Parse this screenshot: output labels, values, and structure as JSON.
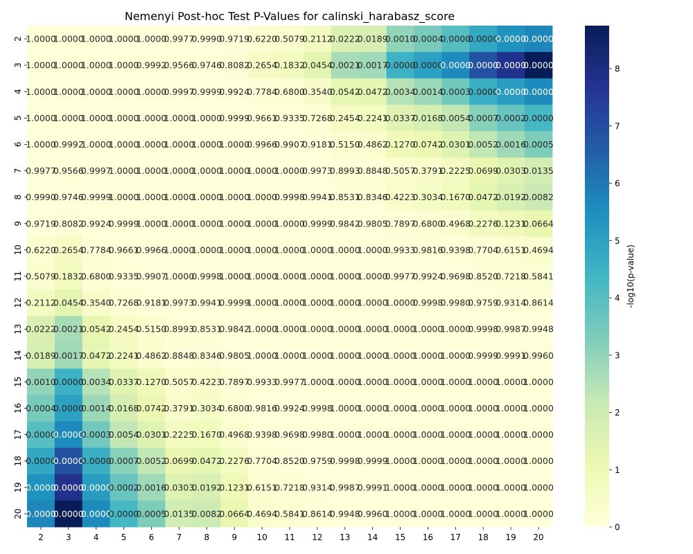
{
  "chart_data": {
    "type": "heatmap",
    "title": "Nemenyi Post-hoc Test P-Values for calinski_harabasz_score",
    "xlabel": "",
    "ylabel": "",
    "categories": [
      "2",
      "3",
      "4",
      "5",
      "6",
      "7",
      "8",
      "9",
      "10",
      "11",
      "12",
      "13",
      "14",
      "15",
      "16",
      "17",
      "18",
      "19",
      "20"
    ],
    "colorbar": {
      "label": "-log10(p-value)",
      "min": 0,
      "max": 8.75,
      "ticks": [
        "0",
        "1",
        "2",
        "3",
        "4",
        "5",
        "6",
        "7",
        "8"
      ],
      "colormap": "YlGnBu"
    },
    "colorscale": [
      "#ffffd9",
      "#edf8b1",
      "#c7e9b4",
      "#7fcdbb",
      "#41b6c4",
      "#1d91c0",
      "#225ea8",
      "#253494",
      "#081d58"
    ],
    "display_values": [
      [
        "1.0000",
        "1.0000",
        "1.0000",
        "1.0000",
        "1.0000",
        "0.9977",
        "0.9990",
        "0.9719",
        "0.6220",
        "0.5079",
        "0.2112",
        "0.0222",
        "0.0189",
        "0.0010",
        "0.0004",
        "0.0000",
        "0.0000",
        "0.0000",
        "0.0000"
      ],
      [
        "1.0000",
        "1.0000",
        "1.0000",
        "1.0000",
        "0.9992",
        "0.9566",
        "0.9746",
        "0.8082",
        "0.2654",
        "0.1832",
        "0.0454",
        "0.0021",
        "0.0017",
        "0.0000",
        "0.0000",
        "0.0000",
        "0.0000",
        "0.0000",
        "0.0000"
      ],
      [
        "1.0000",
        "1.0000",
        "1.0000",
        "1.0000",
        "1.0000",
        "0.9997",
        "0.9999",
        "0.9924",
        "0.7784",
        "0.6800",
        "0.3540",
        "0.0542",
        "0.0472",
        "0.0034",
        "0.0014",
        "0.0003",
        "0.0000",
        "0.0000",
        "0.0000"
      ],
      [
        "1.0000",
        "1.0000",
        "1.0000",
        "1.0000",
        "1.0000",
        "1.0000",
        "1.0000",
        "0.9999",
        "0.9661",
        "0.9335",
        "0.7268",
        "0.2454",
        "0.2241",
        "0.0337",
        "0.0168",
        "0.0054",
        "0.0007",
        "0.0002",
        "0.0000"
      ],
      [
        "1.0000",
        "0.9992",
        "1.0000",
        "1.0000",
        "1.0000",
        "1.0000",
        "1.0000",
        "1.0000",
        "0.9966",
        "0.9907",
        "0.9181",
        "0.5150",
        "0.4862",
        "0.1270",
        "0.0742",
        "0.0301",
        "0.0052",
        "0.0016",
        "0.0005"
      ],
      [
        "0.9977",
        "0.9566",
        "0.9997",
        "1.0000",
        "1.0000",
        "1.0000",
        "1.0000",
        "1.0000",
        "1.0000",
        "1.0000",
        "0.9973",
        "0.8993",
        "0.8848",
        "0.5057",
        "0.3791",
        "0.2225",
        "0.0699",
        "0.0303",
        "0.0135"
      ],
      [
        "0.9990",
        "0.9746",
        "0.9999",
        "1.0000",
        "1.0000",
        "1.0000",
        "1.0000",
        "1.0000",
        "1.0000",
        "0.9998",
        "0.9941",
        "0.8531",
        "0.8346",
        "0.4223",
        "0.3034",
        "0.1670",
        "0.0472",
        "0.0192",
        "0.0082"
      ],
      [
        "0.9719",
        "0.8082",
        "0.9924",
        "0.9999",
        "1.0000",
        "1.0000",
        "1.0000",
        "1.0000",
        "1.0000",
        "1.0000",
        "0.9999",
        "0.9842",
        "0.9805",
        "0.7897",
        "0.6800",
        "0.4968",
        "0.2276",
        "0.1231",
        "0.0664"
      ],
      [
        "0.6220",
        "0.2654",
        "0.7784",
        "0.9661",
        "0.9966",
        "1.0000",
        "1.0000",
        "1.0000",
        "1.0000",
        "1.0000",
        "1.0000",
        "1.0000",
        "1.0000",
        "0.9933",
        "0.9816",
        "0.9398",
        "0.7704",
        "0.6151",
        "0.4694"
      ],
      [
        "0.5079",
        "0.1832",
        "0.6800",
        "0.9335",
        "0.9907",
        "1.0000",
        "0.9998",
        "1.0000",
        "1.0000",
        "1.0000",
        "1.0000",
        "1.0000",
        "1.0000",
        "0.9977",
        "0.9924",
        "0.9698",
        "0.8520",
        "0.7218",
        "0.5841"
      ],
      [
        "0.2112",
        "0.0454",
        "0.3540",
        "0.7268",
        "0.9181",
        "0.9973",
        "0.9941",
        "0.9999",
        "1.0000",
        "1.0000",
        "1.0000",
        "1.0000",
        "1.0000",
        "1.0000",
        "0.9998",
        "0.9980",
        "0.9759",
        "0.9314",
        "0.8614"
      ],
      [
        "0.0222",
        "0.0021",
        "0.0542",
        "0.2454",
        "0.5150",
        "0.8993",
        "0.8531",
        "0.9842",
        "1.0000",
        "1.0000",
        "1.0000",
        "1.0000",
        "1.0000",
        "1.0000",
        "1.0000",
        "1.0000",
        "0.9998",
        "0.9987",
        "0.9948"
      ],
      [
        "0.0189",
        "0.0017",
        "0.0472",
        "0.2241",
        "0.4862",
        "0.8848",
        "0.8346",
        "0.9805",
        "1.0000",
        "1.0000",
        "1.0000",
        "1.0000",
        "1.0000",
        "1.0000",
        "1.0000",
        "1.0000",
        "0.9999",
        "0.9991",
        "0.9960"
      ],
      [
        "0.0010",
        "0.0000",
        "0.0034",
        "0.0337",
        "0.1270",
        "0.5057",
        "0.4223",
        "0.7897",
        "0.9933",
        "0.9977",
        "1.0000",
        "1.0000",
        "1.0000",
        "1.0000",
        "1.0000",
        "1.0000",
        "1.0000",
        "1.0000",
        "1.0000"
      ],
      [
        "0.0004",
        "0.0000",
        "0.0014",
        "0.0168",
        "0.0742",
        "0.3791",
        "0.3034",
        "0.6800",
        "0.9816",
        "0.9924",
        "0.9998",
        "1.0000",
        "1.0000",
        "1.0000",
        "1.0000",
        "1.0000",
        "1.0000",
        "1.0000",
        "1.0000"
      ],
      [
        "0.0000",
        "0.0000",
        "0.0003",
        "0.0054",
        "0.0301",
        "0.2225",
        "0.1670",
        "0.4968",
        "0.9398",
        "0.9698",
        "0.9980",
        "1.0000",
        "1.0000",
        "1.0000",
        "1.0000",
        "1.0000",
        "1.0000",
        "1.0000",
        "1.0000"
      ],
      [
        "0.0000",
        "0.0000",
        "0.0000",
        "0.0007",
        "0.0052",
        "0.0699",
        "0.0472",
        "0.2276",
        "0.7704",
        "0.8520",
        "0.9759",
        "0.9998",
        "0.9999",
        "1.0000",
        "1.0000",
        "1.0000",
        "1.0000",
        "1.0000",
        "1.0000"
      ],
      [
        "0.0000",
        "0.0000",
        "0.0000",
        "0.0002",
        "0.0016",
        "0.0303",
        "0.0192",
        "0.1231",
        "0.6151",
        "0.7218",
        "0.9314",
        "0.9987",
        "0.9991",
        "1.0000",
        "1.0000",
        "1.0000",
        "1.0000",
        "1.0000",
        "1.0000"
      ],
      [
        "0.0000",
        "0.0000",
        "0.0000",
        "0.0000",
        "0.0005",
        "0.0135",
        "0.0082",
        "0.0664",
        "0.4694",
        "0.5841",
        "0.8614",
        "0.9948",
        "0.9960",
        "1.0000",
        "1.0000",
        "1.0000",
        "1.0000",
        "1.0000",
        "1.0000"
      ]
    ],
    "color_values": [
      [
        0,
        0,
        0,
        0,
        0,
        0.001,
        0.0004,
        0.0124,
        0.2062,
        0.2942,
        0.6752,
        1.6536,
        1.7235,
        3.0,
        3.3979,
        4.0,
        4.8,
        5.4,
        5.7
      ],
      [
        0,
        0,
        0,
        0,
        0.0004,
        0.0193,
        0.0112,
        0.0925,
        0.5761,
        0.7371,
        1.3429,
        2.6778,
        2.7696,
        4.5,
        5.0,
        5.6,
        6.9,
        7.8,
        8.75
      ],
      [
        0,
        0,
        0,
        0,
        0,
        0.0001,
        0,
        0.0033,
        0.1088,
        0.1675,
        0.451,
        1.266,
        1.3261,
        2.4685,
        2.8539,
        3.5229,
        4.6,
        5.1,
        5.6
      ],
      [
        0,
        0,
        0,
        0,
        0,
        0,
        0,
        0,
        0.015,
        0.0299,
        0.1386,
        0.6101,
        0.6495,
        1.4724,
        1.7747,
        2.2676,
        3.1549,
        3.699,
        4.3
      ],
      [
        0,
        0.0004,
        0,
        0,
        0,
        0,
        0,
        0,
        0.0015,
        0.0041,
        0.0371,
        0.2882,
        0.3132,
        0.8962,
        1.1296,
        1.5214,
        2.284,
        2.7959,
        3.301
      ],
      [
        0.001,
        0.0193,
        0.0001,
        0,
        0,
        0,
        0,
        0,
        0,
        0,
        0.0012,
        0.0461,
        0.0531,
        0.2961,
        0.4212,
        0.6527,
        1.1555,
        1.5186,
        1.8697
      ],
      [
        0.0004,
        0.0112,
        0,
        0,
        0,
        0,
        0,
        0,
        0,
        0.0001,
        0.0026,
        0.069,
        0.0786,
        0.3744,
        0.518,
        0.7773,
        1.3261,
        1.7167,
        2.0862
      ],
      [
        0.0124,
        0.0925,
        0.0033,
        0,
        0,
        0,
        0,
        0,
        0,
        0,
        0,
        0.0069,
        0.0086,
        0.1025,
        0.1675,
        0.3039,
        0.6429,
        0.9097,
        1.1778
      ],
      [
        0.2062,
        0.5761,
        0.1088,
        0.015,
        0.0015,
        0,
        0,
        0,
        0,
        0,
        0,
        0,
        0,
        0.0029,
        0.0081,
        0.027,
        0.1133,
        0.211,
        0.3284
      ],
      [
        0.2942,
        0.7371,
        0.1675,
        0.0299,
        0.0041,
        0,
        0.0001,
        0,
        0,
        0,
        0,
        0,
        0,
        0.001,
        0.0033,
        0.0134,
        0.0696,
        0.1416,
        0.2334
      ],
      [
        0.6752,
        1.3429,
        0.451,
        0.1386,
        0.0371,
        0.0012,
        0.0026,
        0,
        0,
        0,
        0,
        0,
        0,
        0,
        0.0001,
        0.0009,
        0.0106,
        0.0309,
        0.0648
      ],
      [
        1.6536,
        2.6778,
        1.266,
        0.6101,
        0.2882,
        0.0461,
        0.069,
        0.0069,
        0,
        0,
        0,
        0,
        0,
        0,
        0,
        0,
        0.0001,
        0.0006,
        0.0023
      ],
      [
        1.7235,
        2.7696,
        1.3261,
        0.6495,
        0.3132,
        0.0531,
        0.0786,
        0.0086,
        0,
        0,
        0,
        0,
        0,
        0,
        0,
        0,
        0,
        0.0004,
        0.0017
      ],
      [
        3.0,
        4.5,
        2.4685,
        1.4724,
        0.8962,
        0.2961,
        0.3744,
        0.1025,
        0.0029,
        0.001,
        0,
        0,
        0,
        0,
        0,
        0,
        0,
        0,
        0
      ],
      [
        3.3979,
        5.0,
        2.8539,
        1.7747,
        1.1296,
        0.4212,
        0.518,
        0.1675,
        0.0081,
        0.0033,
        0.0001,
        0,
        0,
        0,
        0,
        0,
        0,
        0,
        0
      ],
      [
        4.0,
        5.6,
        3.5229,
        2.2676,
        1.5214,
        0.6527,
        0.7773,
        0.3039,
        0.027,
        0.0134,
        0.0009,
        0,
        0,
        0,
        0,
        0,
        0,
        0,
        0
      ],
      [
        4.8,
        6.9,
        4.6,
        3.1549,
        2.284,
        1.1555,
        1.3261,
        0.6429,
        0.1133,
        0.0696,
        0.0106,
        0.0001,
        0,
        0,
        0,
        0,
        0,
        0,
        0
      ],
      [
        5.4,
        7.8,
        5.1,
        3.699,
        2.7959,
        1.5186,
        1.7167,
        0.9097,
        0.211,
        0.1416,
        0.0309,
        0.0006,
        0.0004,
        0,
        0,
        0,
        0,
        0,
        0
      ],
      [
        5.7,
        8.75,
        5.6,
        4.3,
        3.301,
        1.8697,
        2.0862,
        1.1778,
        0.3284,
        0.2334,
        0.0648,
        0.0023,
        0.0017,
        0,
        0,
        0,
        0,
        0,
        0
      ]
    ]
  }
}
